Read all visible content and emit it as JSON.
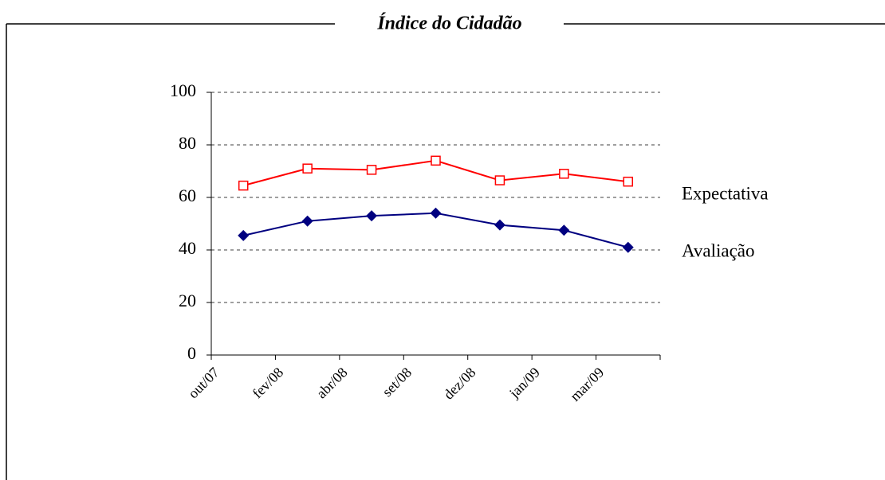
{
  "chart_data": {
    "type": "line",
    "title": "Índice do Cidadão",
    "categories": [
      "out/07",
      "fev/08",
      "abr/08",
      "set/08",
      "dez/08",
      "jan/09",
      "mar/09"
    ],
    "series": [
      {
        "name": "Expectativa",
        "color": "#ff0000",
        "marker": "square",
        "values": [
          64.5,
          71,
          70.5,
          74,
          66.5,
          69,
          66
        ]
      },
      {
        "name": "Avaliação",
        "color": "#000080",
        "marker": "diamond",
        "values": [
          45.5,
          51,
          53,
          54,
          49.5,
          47.5,
          41
        ]
      }
    ],
    "ylim": [
      0,
      100
    ],
    "yticks": [
      0,
      20,
      40,
      60,
      80,
      100
    ],
    "grid": true
  }
}
